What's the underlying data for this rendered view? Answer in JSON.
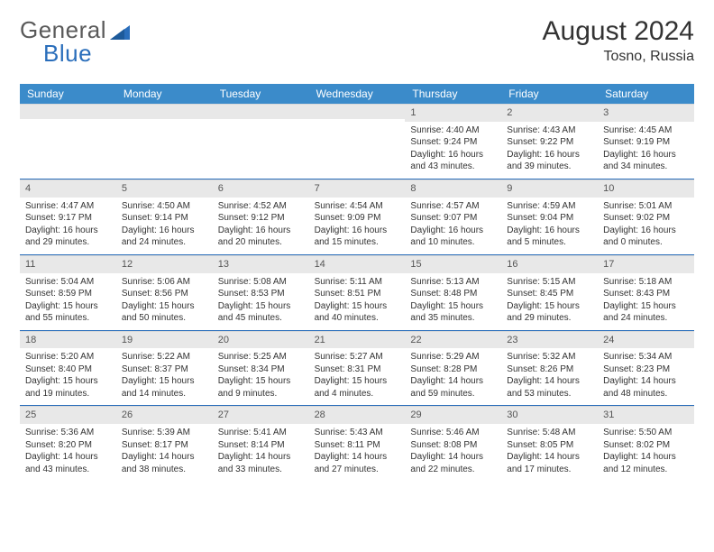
{
  "brand": {
    "word1": "General",
    "word2": "Blue"
  },
  "title": "August 2024",
  "location": "Tosno, Russia",
  "colors": {
    "header_bg": "#3b8bca",
    "week_border": "#2a6ebb",
    "daynum_bg": "#e8e8e8",
    "text": "#333333",
    "muted": "#5a5a5a"
  },
  "layout": {
    "first_weekday_index": 4,
    "cols": 7,
    "rows": 5
  },
  "day_names": [
    "Sunday",
    "Monday",
    "Tuesday",
    "Wednesday",
    "Thursday",
    "Friday",
    "Saturday"
  ],
  "days": [
    {
      "n": 1,
      "sunrise": "4:40 AM",
      "sunset": "9:24 PM",
      "daylight": "16 hours and 43 minutes."
    },
    {
      "n": 2,
      "sunrise": "4:43 AM",
      "sunset": "9:22 PM",
      "daylight": "16 hours and 39 minutes."
    },
    {
      "n": 3,
      "sunrise": "4:45 AM",
      "sunset": "9:19 PM",
      "daylight": "16 hours and 34 minutes."
    },
    {
      "n": 4,
      "sunrise": "4:47 AM",
      "sunset": "9:17 PM",
      "daylight": "16 hours and 29 minutes."
    },
    {
      "n": 5,
      "sunrise": "4:50 AM",
      "sunset": "9:14 PM",
      "daylight": "16 hours and 24 minutes."
    },
    {
      "n": 6,
      "sunrise": "4:52 AM",
      "sunset": "9:12 PM",
      "daylight": "16 hours and 20 minutes."
    },
    {
      "n": 7,
      "sunrise": "4:54 AM",
      "sunset": "9:09 PM",
      "daylight": "16 hours and 15 minutes."
    },
    {
      "n": 8,
      "sunrise": "4:57 AM",
      "sunset": "9:07 PM",
      "daylight": "16 hours and 10 minutes."
    },
    {
      "n": 9,
      "sunrise": "4:59 AM",
      "sunset": "9:04 PM",
      "daylight": "16 hours and 5 minutes."
    },
    {
      "n": 10,
      "sunrise": "5:01 AM",
      "sunset": "9:02 PM",
      "daylight": "16 hours and 0 minutes."
    },
    {
      "n": 11,
      "sunrise": "5:04 AM",
      "sunset": "8:59 PM",
      "daylight": "15 hours and 55 minutes."
    },
    {
      "n": 12,
      "sunrise": "5:06 AM",
      "sunset": "8:56 PM",
      "daylight": "15 hours and 50 minutes."
    },
    {
      "n": 13,
      "sunrise": "5:08 AM",
      "sunset": "8:53 PM",
      "daylight": "15 hours and 45 minutes."
    },
    {
      "n": 14,
      "sunrise": "5:11 AM",
      "sunset": "8:51 PM",
      "daylight": "15 hours and 40 minutes."
    },
    {
      "n": 15,
      "sunrise": "5:13 AM",
      "sunset": "8:48 PM",
      "daylight": "15 hours and 35 minutes."
    },
    {
      "n": 16,
      "sunrise": "5:15 AM",
      "sunset": "8:45 PM",
      "daylight": "15 hours and 29 minutes."
    },
    {
      "n": 17,
      "sunrise": "5:18 AM",
      "sunset": "8:43 PM",
      "daylight": "15 hours and 24 minutes."
    },
    {
      "n": 18,
      "sunrise": "5:20 AM",
      "sunset": "8:40 PM",
      "daylight": "15 hours and 19 minutes."
    },
    {
      "n": 19,
      "sunrise": "5:22 AM",
      "sunset": "8:37 PM",
      "daylight": "15 hours and 14 minutes."
    },
    {
      "n": 20,
      "sunrise": "5:25 AM",
      "sunset": "8:34 PM",
      "daylight": "15 hours and 9 minutes."
    },
    {
      "n": 21,
      "sunrise": "5:27 AM",
      "sunset": "8:31 PM",
      "daylight": "15 hours and 4 minutes."
    },
    {
      "n": 22,
      "sunrise": "5:29 AM",
      "sunset": "8:28 PM",
      "daylight": "14 hours and 59 minutes."
    },
    {
      "n": 23,
      "sunrise": "5:32 AM",
      "sunset": "8:26 PM",
      "daylight": "14 hours and 53 minutes."
    },
    {
      "n": 24,
      "sunrise": "5:34 AM",
      "sunset": "8:23 PM",
      "daylight": "14 hours and 48 minutes."
    },
    {
      "n": 25,
      "sunrise": "5:36 AM",
      "sunset": "8:20 PM",
      "daylight": "14 hours and 43 minutes."
    },
    {
      "n": 26,
      "sunrise": "5:39 AM",
      "sunset": "8:17 PM",
      "daylight": "14 hours and 38 minutes."
    },
    {
      "n": 27,
      "sunrise": "5:41 AM",
      "sunset": "8:14 PM",
      "daylight": "14 hours and 33 minutes."
    },
    {
      "n": 28,
      "sunrise": "5:43 AM",
      "sunset": "8:11 PM",
      "daylight": "14 hours and 27 minutes."
    },
    {
      "n": 29,
      "sunrise": "5:46 AM",
      "sunset": "8:08 PM",
      "daylight": "14 hours and 22 minutes."
    },
    {
      "n": 30,
      "sunrise": "5:48 AM",
      "sunset": "8:05 PM",
      "daylight": "14 hours and 17 minutes."
    },
    {
      "n": 31,
      "sunrise": "5:50 AM",
      "sunset": "8:02 PM",
      "daylight": "14 hours and 12 minutes."
    }
  ],
  "labels": {
    "sunrise": "Sunrise:",
    "sunset": "Sunset:",
    "daylight": "Daylight:"
  }
}
